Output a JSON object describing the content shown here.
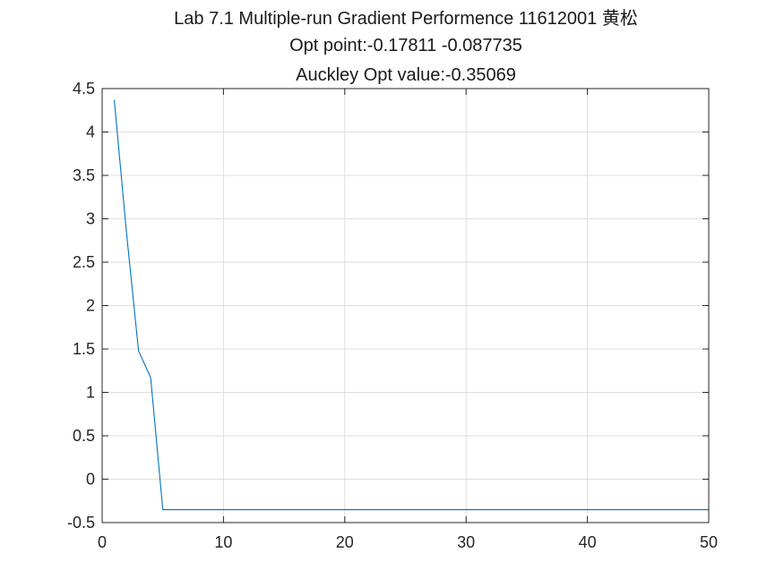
{
  "chart_data": {
    "type": "line",
    "title_lines": [
      "Lab 7.1 Multiple-run Gradient Performence 11612001 黄松",
      "Opt point:-0.17811   -0.087735",
      "Auckley Opt value:-0.35069"
    ],
    "xlabel": "",
    "ylabel": "",
    "xlim": [
      0,
      50
    ],
    "ylim": [
      -0.5,
      4.5
    ],
    "xticks": [
      0,
      10,
      20,
      30,
      40,
      50
    ],
    "yticks": [
      -0.5,
      0,
      0.5,
      1,
      1.5,
      2,
      2.5,
      3,
      3.5,
      4,
      4.5
    ],
    "xtick_labels": [
      "0",
      "10",
      "20",
      "30",
      "40",
      "50"
    ],
    "ytick_labels": [
      "-0.5",
      "0",
      "0.5",
      "1",
      "1.5",
      "2",
      "2.5",
      "3",
      "3.5",
      "4",
      "4.5"
    ],
    "grid": true,
    "series": [
      {
        "color": "#0072bd",
        "x": [
          1,
          2,
          3,
          4,
          5,
          6,
          7,
          8,
          9,
          10,
          11,
          12,
          13,
          14,
          15,
          16,
          17,
          18,
          19,
          20,
          21,
          22,
          23,
          24,
          25,
          26,
          27,
          28,
          29,
          30,
          31,
          32,
          33,
          34,
          35,
          36,
          37,
          38,
          39,
          40,
          41,
          42,
          43,
          44,
          45,
          46,
          47,
          48,
          49,
          50
        ],
        "y": [
          4.37,
          2.85,
          1.48,
          1.17,
          -0.35069,
          -0.35069,
          -0.35069,
          -0.35069,
          -0.35069,
          -0.35069,
          -0.35069,
          -0.35069,
          -0.35069,
          -0.35069,
          -0.35069,
          -0.35069,
          -0.35069,
          -0.35069,
          -0.35069,
          -0.35069,
          -0.35069,
          -0.35069,
          -0.35069,
          -0.35069,
          -0.35069,
          -0.35069,
          -0.35069,
          -0.35069,
          -0.35069,
          -0.35069,
          -0.35069,
          -0.35069,
          -0.35069,
          -0.35069,
          -0.35069,
          -0.35069,
          -0.35069,
          -0.35069,
          -0.35069,
          -0.35069,
          -0.35069,
          -0.35069,
          -0.35069,
          -0.35069,
          -0.35069,
          -0.35069,
          -0.35069,
          -0.35069,
          -0.35069,
          -0.35069
        ]
      }
    ]
  }
}
